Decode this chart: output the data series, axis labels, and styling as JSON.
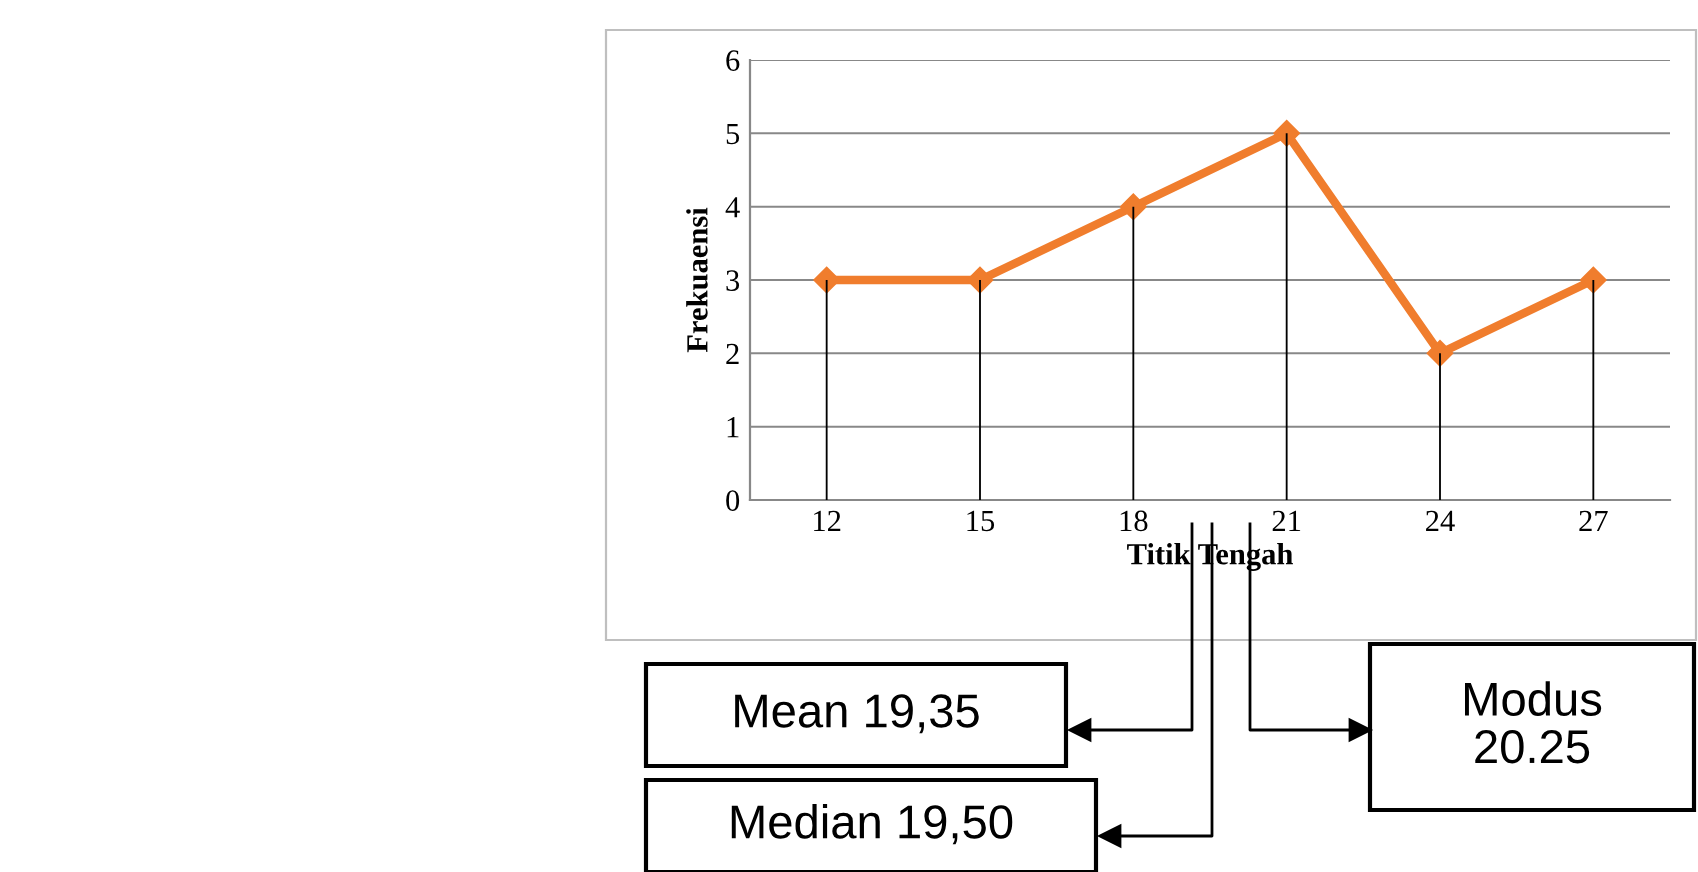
{
  "chart_data": {
    "type": "line",
    "xlabel": "Titik Tengah",
    "ylabel": "Frekuaensi",
    "categories": [
      "12",
      "15",
      "18",
      "21",
      "24",
      "27"
    ],
    "series": [
      {
        "type": "bar",
        "color": "#000000",
        "values": [
          3,
          3,
          4,
          5,
          2,
          3
        ]
      },
      {
        "color": "#f07d2d",
        "values": [
          3,
          3,
          4,
          5,
          2,
          3
        ]
      }
    ],
    "ylim": [
      0,
      6
    ],
    "yticks": [
      0,
      1,
      2,
      3,
      4,
      5,
      6
    ],
    "grid": "y",
    "marker": "diamond",
    "line_style": "solid",
    "annotations": [
      "Mean 19,35",
      "Median 19,50",
      "Modus 20.25"
    ]
  }
}
